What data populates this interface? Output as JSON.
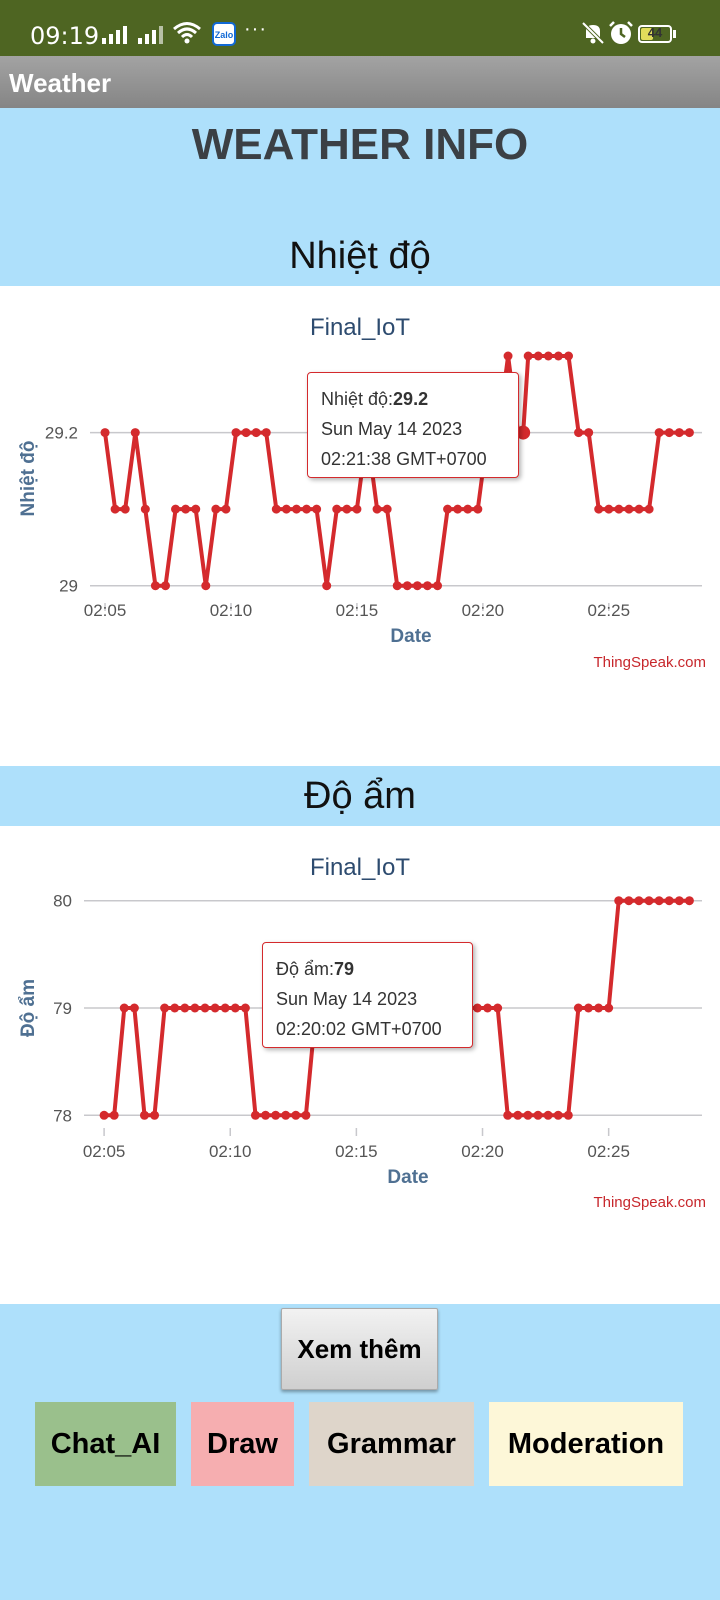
{
  "status_bar": {
    "time": "09:19",
    "battery": "44",
    "battery_level": 0.44,
    "icons": [
      "signal-icon",
      "signal-icon",
      "wifi-icon",
      "zalo-icon",
      "more-icon",
      "mute-icon",
      "alarm-icon",
      "battery-icon"
    ],
    "zalo_label": "Zalo"
  },
  "app_bar": {
    "title": "Weather"
  },
  "page": {
    "heading": "WEATHER INFO"
  },
  "charts": [
    {
      "section_title": "Nhiệt độ",
      "chart_title": "Final_IoT",
      "ylabel": "Nhiệt độ",
      "xlabel": "Date",
      "watermark": "ThingSpeak.com",
      "tooltip": {
        "label": "Nhiệt độ:",
        "value": "29.2",
        "date": "Sun May 14 2023",
        "time": "02:21:38 GMT+0700"
      }
    },
    {
      "section_title": "Độ ẩm",
      "chart_title": "Final_IoT",
      "ylabel": "Độ ẩm",
      "xlabel": "Date",
      "watermark": "ThingSpeak.com",
      "tooltip": {
        "label": "Độ ẩm:",
        "value": "79",
        "date": "Sun May 14 2023",
        "time": "02:20:02 GMT+0700"
      }
    }
  ],
  "chart_data": [
    {
      "type": "line",
      "title": "Final_IoT",
      "xlabel": "Date",
      "ylabel": "Nhiệt độ",
      "x_tick_labels": [
        "02:05",
        "02:10",
        "02:15",
        "02:20",
        "02:25"
      ],
      "y_tick_labels": [
        "29",
        "29.2"
      ],
      "y_ticks": [
        29,
        29.2
      ],
      "ylim": [
        28.98,
        29.3
      ],
      "xlim_minutes": [
        "02:04.8",
        "02:28.5"
      ],
      "grid": true,
      "color": "#d42a2d",
      "highlight_index": 44,
      "x": [
        "02:05.0",
        "02:05.4",
        "02:05.8",
        "02:06.2",
        "02:06.6",
        "02:07.0",
        "02:07.4",
        "02:07.8",
        "02:08.2",
        "02:08.6",
        "02:09.0",
        "02:09.4",
        "02:09.8",
        "02:10.2",
        "02:10.6",
        "02:11.0",
        "02:11.4",
        "02:11.8",
        "02:12.2",
        "02:12.6",
        "02:13.0",
        "02:13.4",
        "02:13.8",
        "02:14.2",
        "02:14.6",
        "02:15.0",
        "02:15.4",
        "02:15.8",
        "02:16.2",
        "02:16.6",
        "02:17.0",
        "02:17.4",
        "02:17.8",
        "02:18.2",
        "02:18.6",
        "02:19.0",
        "02:19.4",
        "02:19.8",
        "02:20.2",
        "02:20.6",
        "02:21.0",
        "02:21.4",
        "02:21.8",
        "02:22.2",
        "02:21.6",
        "02:22.6",
        "02:23.0",
        "02:23.4",
        "02:23.8",
        "02:24.2",
        "02:24.6",
        "02:25.0",
        "02:25.4",
        "02:25.8",
        "02:26.2",
        "02:26.6",
        "02:27.0",
        "02:27.4",
        "02:27.8",
        "02:28.2"
      ],
      "y": [
        29.2,
        29.1,
        29.1,
        29.2,
        29.1,
        29.0,
        29.0,
        29.1,
        29.1,
        29.1,
        29.0,
        29.1,
        29.1,
        29.2,
        29.2,
        29.2,
        29.2,
        29.1,
        29.1,
        29.1,
        29.1,
        29.1,
        29.0,
        29.1,
        29.1,
        29.1,
        29.2,
        29.1,
        29.1,
        29.0,
        29.0,
        29.0,
        29.0,
        29.0,
        29.1,
        29.1,
        29.1,
        29.1,
        29.2,
        29.2,
        29.3,
        29.2,
        29.3,
        29.3,
        29.2,
        29.3,
        29.3,
        29.3,
        29.2,
        29.2,
        29.1,
        29.1,
        29.1,
        29.1,
        29.1,
        29.1,
        29.2,
        29.2,
        29.2,
        29.2
      ]
    },
    {
      "type": "line",
      "title": "Final_IoT",
      "xlabel": "Date",
      "ylabel": "Độ ẩm",
      "x_tick_labels": [
        "02:05",
        "02:10",
        "02:15",
        "02:20",
        "02:25"
      ],
      "y_tick_labels": [
        "78",
        "79",
        "80"
      ],
      "y_ticks": [
        78,
        79,
        80
      ],
      "ylim": [
        77.9,
        80.1
      ],
      "grid": true,
      "color": "#d42a2d",
      "x": [
        "02:05.0",
        "02:05.4",
        "02:05.8",
        "02:06.2",
        "02:06.6",
        "02:07.0",
        "02:07.4",
        "02:07.8",
        "02:08.2",
        "02:08.6",
        "02:09.0",
        "02:09.4",
        "02:09.8",
        "02:10.2",
        "02:10.6",
        "02:11.0",
        "02:11.4",
        "02:11.8",
        "02:12.2",
        "02:12.6",
        "02:13.0",
        "02:13.4",
        "02:13.8",
        "02:14.2",
        "02:14.6",
        "02:15.0",
        "02:15.4",
        "02:15.8",
        "02:16.2",
        "02:16.6",
        "02:17.0",
        "02:17.4",
        "02:17.8",
        "02:18.2",
        "02:18.6",
        "02:19.0",
        "02:19.4",
        "02:19.8",
        "02:20.2",
        "02:20.6",
        "02:21.0",
        "02:21.4",
        "02:21.8",
        "02:22.2",
        "02:22.6",
        "02:23.0",
        "02:23.4",
        "02:23.8",
        "02:24.2",
        "02:24.6",
        "02:25.0",
        "02:25.4",
        "02:25.8",
        "02:26.2",
        "02:26.6",
        "02:27.0",
        "02:27.4",
        "02:27.8",
        "02:28.2"
      ],
      "y": [
        78,
        78,
        79,
        79,
        78,
        78,
        79,
        79,
        79,
        79,
        79,
        79,
        79,
        79,
        79,
        78,
        78,
        78,
        78,
        78,
        78,
        79,
        79,
        79,
        79,
        79,
        79,
        79,
        79,
        79,
        79,
        79,
        79,
        79,
        79,
        79,
        79,
        79,
        79,
        79,
        78,
        78,
        78,
        78,
        78,
        78,
        78,
        79,
        79,
        79,
        79,
        80,
        80,
        80,
        80,
        80,
        80,
        80,
        80
      ]
    }
  ],
  "buttons": {
    "more": "Xem thêm",
    "nav": [
      {
        "label": "Chat_AI",
        "color": "#9ac08c"
      },
      {
        "label": "Draw",
        "color": "#f6aeb0"
      },
      {
        "label": "Grammar",
        "color": "#ded5ca"
      },
      {
        "label": "Moderation",
        "color": "#fdf7d8"
      }
    ]
  }
}
